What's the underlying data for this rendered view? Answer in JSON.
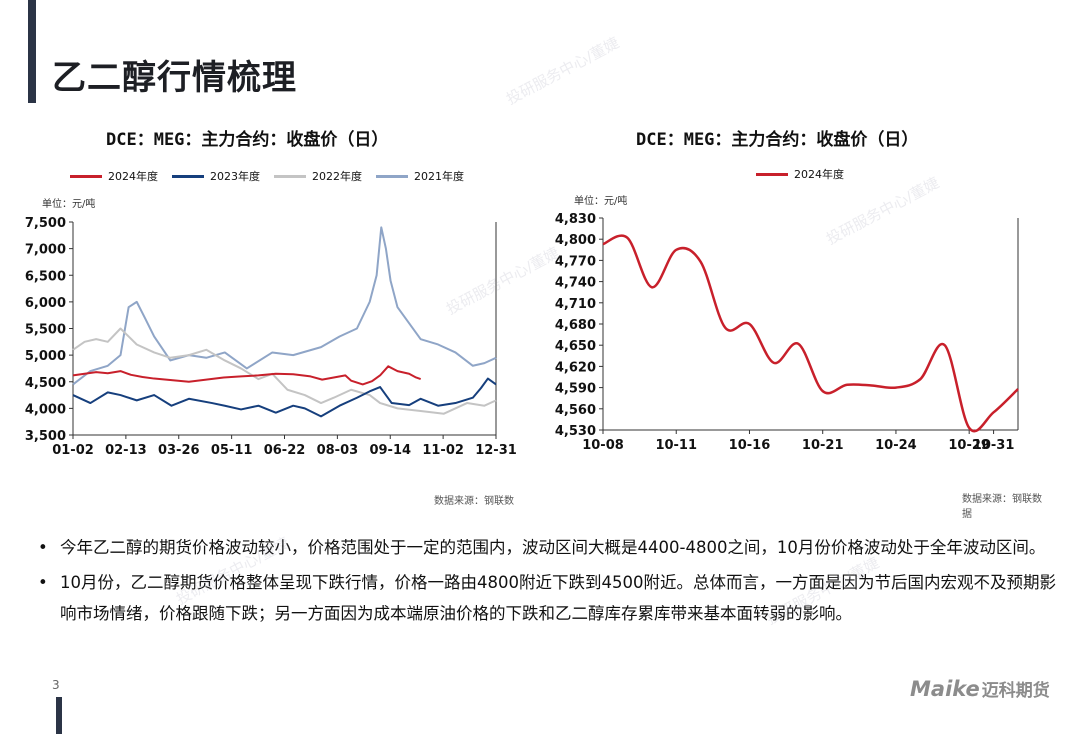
{
  "page": {
    "title": "乙二醇行情梳理",
    "page_number": "3",
    "logo_latin": "Maike",
    "logo_cn": "迈科期货",
    "watermark_text": "投研服务中心/董婕"
  },
  "colors": {
    "accent": "#2b3446",
    "s2024": "#c8202b",
    "s2023": "#163f7d",
    "s2022": "#c4c4c4",
    "s2021": "#8fa5c7"
  },
  "chart_data": [
    {
      "type": "line",
      "title": "DCE：MEG：主力合约：收盘价（日）",
      "unit_label": "单位：元/吨",
      "source": "数据来源：钢联数",
      "ylim": [
        3500,
        7500
      ],
      "yticks": [
        "7,500",
        "7,000",
        "6,500",
        "6,000",
        "5,500",
        "5,000",
        "4,500",
        "4,000",
        "3,500"
      ],
      "ytick_values": [
        7500,
        7000,
        6500,
        6000,
        5500,
        5000,
        4500,
        4000,
        3500
      ],
      "xticks": [
        "01-02",
        "02-13",
        "03-26",
        "05-11",
        "06-22",
        "08-03",
        "09-14",
        "11-02",
        "12-31"
      ],
      "xlim": [
        0,
        365
      ],
      "grid": false,
      "legend": "top",
      "series": [
        {
          "name": "2024年度",
          "color_key": "s2024",
          "x": [
            0,
            10,
            20,
            30,
            41,
            50,
            60,
            70,
            85,
            100,
            115,
            130,
            145,
            160,
            175,
            190,
            205,
            215,
            225,
            235,
            240,
            250,
            258,
            265,
            272,
            280,
            290,
            296,
            300
          ],
          "values": [
            4620,
            4650,
            4680,
            4660,
            4700,
            4630,
            4590,
            4560,
            4530,
            4500,
            4540,
            4580,
            4600,
            4620,
            4650,
            4640,
            4600,
            4540,
            4580,
            4620,
            4520,
            4450,
            4510,
            4620,
            4790,
            4700,
            4650,
            4580,
            4550
          ]
        },
        {
          "name": "2023年度",
          "color_key": "s2023",
          "x": [
            0,
            15,
            30,
            41,
            55,
            70,
            85,
            100,
            120,
            131,
            145,
            160,
            175,
            190,
            200,
            214,
            230,
            245,
            256,
            265,
            275,
            290,
            300,
            315,
            330,
            345,
            352,
            358,
            365
          ],
          "values": [
            4250,
            4100,
            4300,
            4250,
            4150,
            4250,
            4050,
            4180,
            4100,
            4050,
            3980,
            4050,
            3920,
            4050,
            4000,
            3850,
            4050,
            4200,
            4320,
            4400,
            4100,
            4060,
            4180,
            4050,
            4100,
            4200,
            4380,
            4560,
            4450
          ]
        },
        {
          "name": "2022年度",
          "color_key": "s2022",
          "x": [
            0,
            10,
            20,
            30,
            41,
            55,
            70,
            84,
            100,
            115,
            131,
            145,
            160,
            172,
            185,
            200,
            214,
            225,
            240,
            256,
            265,
            280,
            300,
            320,
            340,
            355,
            365
          ],
          "values": [
            5100,
            5250,
            5300,
            5250,
            5500,
            5200,
            5050,
            4950,
            5000,
            5100,
            4900,
            4750,
            4550,
            4650,
            4350,
            4250,
            4100,
            4200,
            4350,
            4250,
            4100,
            4000,
            3950,
            3900,
            4100,
            4050,
            4150
          ]
        },
        {
          "name": "2021年度",
          "color_key": "s2021",
          "x": [
            0,
            15,
            30,
            41,
            48,
            55,
            62,
            70,
            84,
            100,
            115,
            131,
            150,
            172,
            190,
            214,
            230,
            245,
            256,
            262,
            266,
            270,
            274,
            280,
            290,
            300,
            315,
            330,
            345,
            355,
            365
          ],
          "values": [
            4450,
            4700,
            4800,
            5000,
            5900,
            6000,
            5700,
            5350,
            4900,
            5000,
            4950,
            5050,
            4750,
            5050,
            5000,
            5150,
            5350,
            5500,
            6000,
            6500,
            7400,
            7000,
            6400,
            5900,
            5600,
            5300,
            5200,
            5050,
            4800,
            4850,
            4950
          ]
        }
      ]
    },
    {
      "type": "line",
      "title": "DCE：MEG：主力合约：收盘价（日）",
      "unit_label": "单位：元/吨",
      "source": "数据来源：钢联数据",
      "ylim": [
        4530,
        4830
      ],
      "yticks": [
        "4,830",
        "4,800",
        "4,770",
        "4,740",
        "4,710",
        "4,680",
        "4,650",
        "4,620",
        "4,590",
        "4,560",
        "4,530"
      ],
      "ytick_values": [
        4830,
        4800,
        4770,
        4740,
        4710,
        4680,
        4650,
        4620,
        4590,
        4560,
        4530
      ],
      "xticks": [
        "10-08",
        "10-11",
        "10-16",
        "10-21",
        "10-24",
        "10-29",
        "10-31"
      ],
      "xtick_positions": [
        0,
        3,
        6,
        9,
        12,
        15,
        16
      ],
      "xlim": [
        0,
        17
      ],
      "grid": false,
      "legend": "top",
      "series": [
        {
          "name": "2024年度",
          "color_key": "s2024",
          "x": [
            0,
            1,
            2,
            3,
            4,
            5,
            6,
            7,
            8,
            9,
            10,
            11,
            12,
            13,
            14,
            15,
            16,
            17
          ],
          "values": [
            4793,
            4802,
            4732,
            4785,
            4768,
            4675,
            4680,
            4625,
            4652,
            4585,
            4594,
            4593,
            4590,
            4602,
            4650,
            4533,
            4555,
            4588
          ]
        }
      ]
    }
  ],
  "bullets": [
    "今年乙二醇的期货价格波动较小，价格范围处于一定的范围内，波动区间大概是4400-4800之间，10月份价格波动处于全年波动区间。",
    "10月份，乙二醇期货价格整体呈现下跌行情，价格一路由4800附近下跌到4500附近。总体而言，一方面是因为节后国内宏观不及预期影响市场情绪，价格跟随下跌；另一方面因为成本端原油价格的下跌和乙二醇库存累库带来基本面转弱的影响。"
  ],
  "bullet_symbol": "•"
}
